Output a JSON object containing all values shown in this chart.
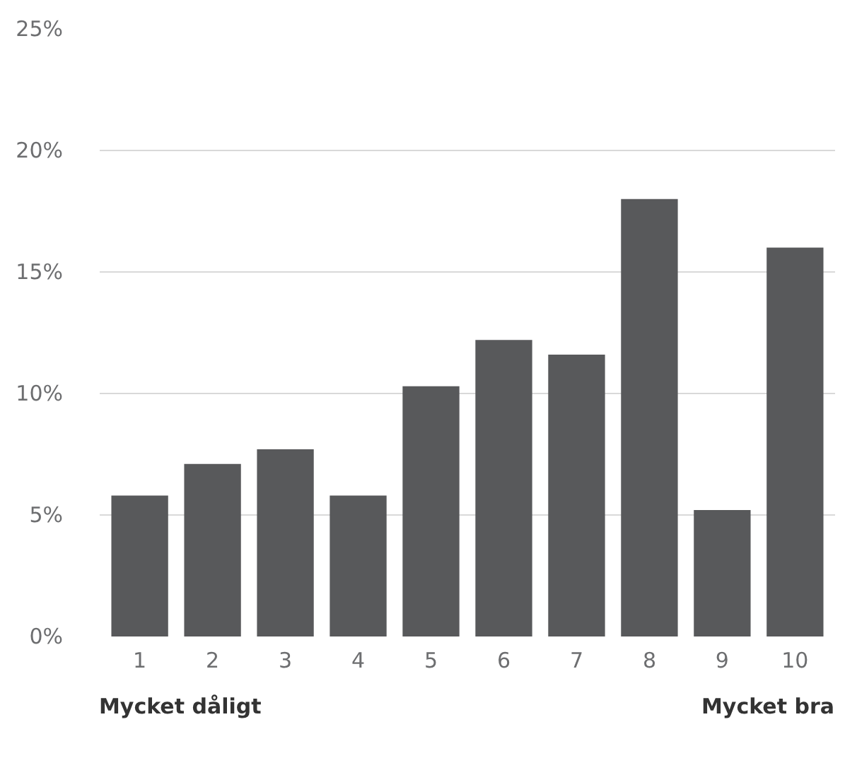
{
  "chart_data": {
    "type": "bar",
    "categories": [
      "1",
      "2",
      "3",
      "4",
      "5",
      "6",
      "7",
      "8",
      "9",
      "10"
    ],
    "values": [
      5.8,
      7.1,
      7.7,
      5.8,
      10.3,
      12.2,
      11.6,
      18.0,
      5.2,
      16.0
    ],
    "color": "#58595b",
    "ylim": [
      0,
      25
    ],
    "yticks": [
      {
        "value": 0,
        "label": "0%"
      },
      {
        "value": 5,
        "label": "5%"
      },
      {
        "value": 10,
        "label": "10%"
      },
      {
        "value": 15,
        "label": "15%"
      },
      {
        "value": 20,
        "label": "20%"
      },
      {
        "value": 25,
        "label": "25%"
      }
    ],
    "grid": "y",
    "annotations": [
      "Mycket dåligt",
      "Mycket bra"
    ]
  }
}
